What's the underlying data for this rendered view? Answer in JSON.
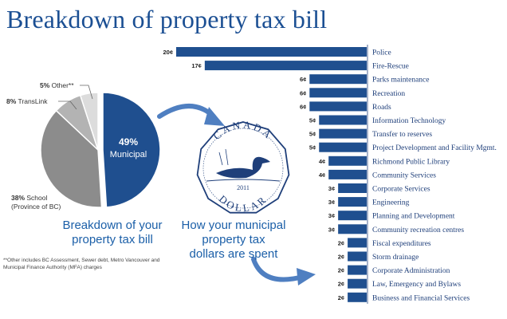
{
  "title": "Breakdown of property tax bill",
  "pie_caption": [
    "Breakdown of your",
    "property tax bill"
  ],
  "bar_caption": [
    "How your municipal",
    "property tax",
    "dollars are spent"
  ],
  "footnote": "**Other includes BC Assessment, Sewer debt, Metro Vancouver and Municipal Finance Authority (MFA) charges",
  "coin": {
    "top": "CANADA",
    "bottom": "DOLLAR",
    "year": "2011"
  },
  "colors": {
    "navy": "#1f4f8f",
    "grey_dark": "#8c8c8c",
    "grey_mid": "#b3b3b3",
    "grey_light": "#dcdcdc",
    "arrow": "#4f7fc1"
  },
  "chart_data": [
    {
      "type": "pie",
      "slices": [
        {
          "pct": "49%",
          "label": "Municipal",
          "value": 49,
          "color": "#1f4f8f"
        },
        {
          "pct": "38%",
          "label": "School",
          "sub": "(Province of BC)",
          "value": 38,
          "color": "#8c8c8c"
        },
        {
          "pct": "8%",
          "label": "TransLink",
          "value": 8,
          "color": "#b3b3b3"
        },
        {
          "pct": "5%",
          "label": "Other**",
          "value": 5,
          "color": "#dcdcdc"
        }
      ]
    },
    {
      "type": "bar",
      "orientation": "horizontal",
      "unit": "¢",
      "categories": [
        "Police",
        "Fire-Rescue",
        "Parks maintenance",
        "Recreation",
        "Roads",
        "Information Technology",
        "Transfer to reserves",
        "Project Development and Facility Mgmt.",
        "Richmond Public Library",
        "Community Services",
        "Corporate Services",
        "Engineering",
        "Planning and Development",
        "Community recreation centres",
        "Fiscal expenditures",
        "Storm drainage",
        "Corporate Administration",
        "Law, Emergency and Bylaws",
        "Business and Financial Services"
      ],
      "values": [
        20,
        17,
        6,
        6,
        6,
        5,
        5,
        5,
        4,
        4,
        3,
        3,
        3,
        3,
        2,
        2,
        2,
        2,
        2
      ],
      "value_labels": [
        "20¢",
        "17¢",
        "6¢",
        "6¢",
        "6¢",
        "5¢",
        "5¢",
        "5¢",
        "4¢",
        "4¢",
        "3¢",
        "3¢",
        "3¢",
        "3¢",
        "2¢",
        "2¢",
        "2¢",
        "2¢",
        "2¢"
      ]
    }
  ]
}
